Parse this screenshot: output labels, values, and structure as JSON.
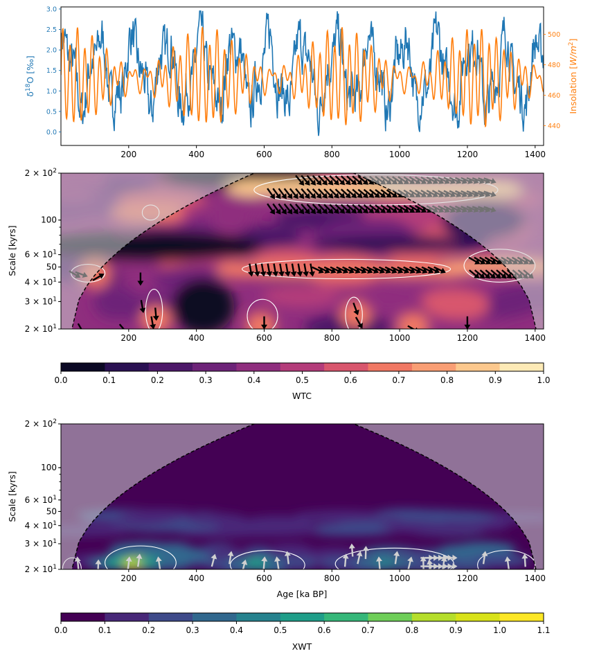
{
  "colors": {
    "d18o": "#1f77b4",
    "insolation": "#ff7f0e",
    "axis": "#000000",
    "contour": "#ffffff",
    "arrows_wtc": "#000000",
    "arrows_xwt": "#d0d0d0",
    "coi_shade": "#cfcfcf"
  },
  "chart_data": [
    {
      "type": "line",
      "panel": "time-series",
      "xlim": [
        0,
        1425
      ],
      "x_ticks": [
        200,
        400,
        600,
        800,
        1000,
        1200,
        1400
      ],
      "series": [
        {
          "name": "d18O",
          "axis": "left",
          "ylabel": "δ18O [‰]",
          "ylim": [
            -0.33,
            3.05
          ],
          "y_ticks": [
            "0.0",
            "0.5",
            "1.0",
            "1.5",
            "2.0",
            "2.5",
            "3.0"
          ],
          "approx_range": [
            -0.2,
            2.95
          ],
          "mean": 1.5,
          "character": "noisy glacial-interglacial oscillations"
        },
        {
          "name": "Insolation",
          "axis": "right",
          "ylabel": "Insolation [W/m2]",
          "ylim": [
            427,
            518
          ],
          "y_ticks": [
            "440",
            "460",
            "480",
            "500"
          ],
          "approx_range": [
            431,
            514
          ],
          "mean": 471,
          "character": "quasi-periodic orbital forcing (~20-23 kyr precession)"
        }
      ]
    },
    {
      "type": "heatmap",
      "panel": "wavelet-coherence",
      "xlim": [
        0,
        1425
      ],
      "x_ticks": [
        200,
        400,
        600,
        800,
        1000,
        1200,
        1400
      ],
      "ylabel": "Scale [kyrs]",
      "ylim": [
        20,
        200
      ],
      "y_scale": "log",
      "y_ticks": [
        "2 × 10^1",
        "3 × 10^1",
        "4 × 10^1",
        "50",
        "6 × 10^1",
        "100",
        "2 × 10^2"
      ],
      "y_tick_values": [
        20,
        30,
        40,
        50,
        60,
        100,
        200
      ],
      "colorbar": {
        "label": "WTC",
        "ticks": [
          "0.0",
          "0.1",
          "0.2",
          "0.3",
          "0.4",
          "0.5",
          "0.6",
          "0.7",
          "0.8",
          "0.9",
          "1.0"
        ],
        "colors": [
          "#0b0924",
          "#2a1152",
          "#4c1868",
          "#6d2378",
          "#8f2e7e",
          "#b43c7a",
          "#d8566d",
          "#f07864",
          "#f99e74",
          "#fcc88d",
          "#fdeab6"
        ]
      },
      "high_coherence_bands": [
        {
          "scale": 160,
          "from": 570,
          "to": 1280,
          "value": 0.9
        },
        {
          "scale": 48,
          "from": 540,
          "to": 1140,
          "value": 0.75
        },
        {
          "scale": 50,
          "from": 1200,
          "to": 1390,
          "value": 0.8
        },
        {
          "scale": 110,
          "from": 230,
          "to": 280,
          "value": 0.75
        }
      ]
    },
    {
      "type": "heatmap",
      "panel": "cross-wavelet",
      "xlim": [
        0,
        1425
      ],
      "x_ticks": [
        200,
        400,
        600,
        800,
        1000,
        1200,
        1400
      ],
      "xlabel": "Age [ka BP]",
      "ylabel": "Scale [kyrs]",
      "ylim": [
        20,
        200
      ],
      "y_scale": "log",
      "y_ticks": [
        "2 × 10^1",
        "3 × 10^1",
        "4 × 10^1",
        "50",
        "6 × 10^1",
        "100",
        "2 × 10^2"
      ],
      "y_tick_values": [
        20,
        30,
        40,
        50,
        60,
        100,
        200
      ],
      "colorbar": {
        "label": "XWT",
        "ticks": [
          "0.0",
          "0.1",
          "0.2",
          "0.3",
          "0.4",
          "0.5",
          "0.6",
          "0.7",
          "0.8",
          "0.9",
          "1.0",
          "1.1"
        ],
        "colors": [
          "#440154",
          "#482878",
          "#3e4a89",
          "#31688e",
          "#26828e",
          "#1f9e89",
          "#35b779",
          "#6ece58",
          "#b5de2b",
          "#d8e219",
          "#fde725"
        ]
      },
      "high_power_regions": [
        {
          "scale": 22,
          "from": 140,
          "to": 330,
          "value": 0.8
        },
        {
          "scale": 22,
          "from": 500,
          "to": 700,
          "value": 0.55
        },
        {
          "scale": 22,
          "from": 820,
          "to": 1140,
          "value": 0.45
        }
      ]
    }
  ]
}
